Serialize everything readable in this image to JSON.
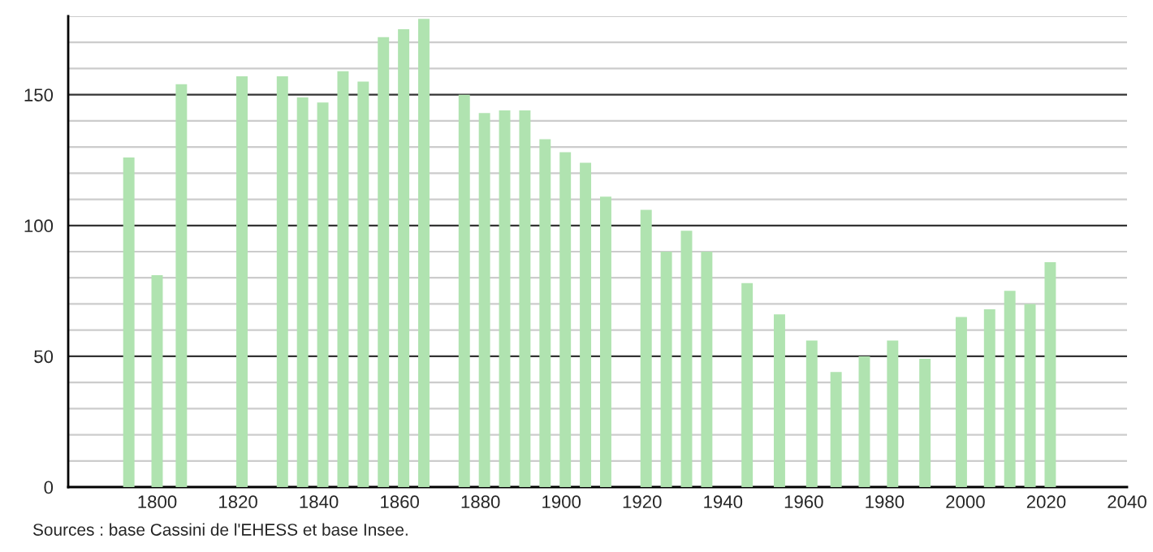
{
  "chart_data": {
    "type": "bar",
    "x": [
      1793,
      1800,
      1806,
      1821,
      1831,
      1836,
      1841,
      1846,
      1851,
      1856,
      1861,
      1866,
      1876,
      1881,
      1886,
      1891,
      1896,
      1901,
      1906,
      1911,
      1921,
      1926,
      1931,
      1936,
      1946,
      1954,
      1962,
      1968,
      1975,
      1982,
      1990,
      1999,
      2006,
      2011,
      2016,
      2021
    ],
    "values": [
      126,
      81,
      154,
      157,
      157,
      149,
      147,
      159,
      155,
      172,
      175,
      179,
      150,
      143,
      144,
      144,
      133,
      128,
      124,
      111,
      106,
      90,
      98,
      90,
      78,
      66,
      56,
      44,
      50,
      56,
      49,
      65,
      68,
      75,
      70,
      86
    ],
    "color": "#b0e3b0",
    "xlim": [
      1778,
      2040
    ],
    "xticks": [
      1800,
      1820,
      1840,
      1860,
      1880,
      1900,
      1920,
      1940,
      1960,
      1980,
      2000,
      2020,
      2040
    ],
    "ylim": [
      0,
      180
    ],
    "yticks": [
      0,
      {
        "value": 10,
        "label": null
      },
      {
        "value": 20,
        "label": null
      },
      {
        "value": 30,
        "label": null
      },
      {
        "value": 40,
        "label": null
      },
      50,
      {
        "value": 60,
        "label": null
      },
      {
        "value": 70,
        "label": null
      },
      {
        "value": 80,
        "label": null
      },
      {
        "value": 90,
        "label": null
      },
      100,
      {
        "value": 110,
        "label": null
      },
      {
        "value": 120,
        "label": null
      },
      {
        "value": 130,
        "label": null
      },
      {
        "value": 140,
        "label": null
      },
      150,
      {
        "value": 160,
        "label": null
      },
      {
        "value": 170,
        "label": null
      },
      {
        "value": 180,
        "label": null
      }
    ],
    "grid": "y",
    "annotations": [
      "Sources : base Cassini de l'EHESS et base Insee."
    ]
  }
}
